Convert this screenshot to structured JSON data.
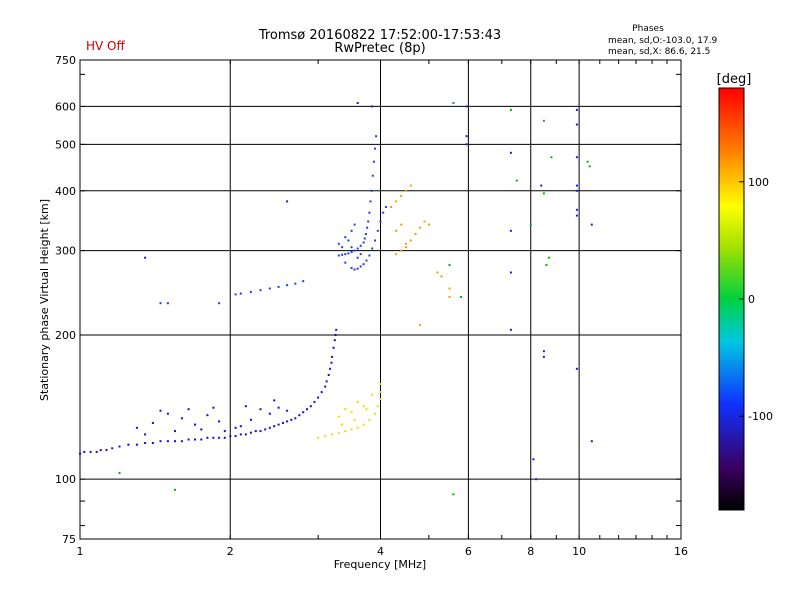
{
  "header": {
    "title": "Tromsø 20160822 17:52:00-17:53:43",
    "subtitle": "RwPretec (8p)",
    "hv_status": "HV Off",
    "hv_color": "#cc0000",
    "phases_title": "Phases",
    "phases_line1": "mean, sd,O:-103.0, 17.9",
    "phases_line2": "mean, sd,X:  86.6, 21.5"
  },
  "chart_data": {
    "type": "scatter",
    "xlabel": "Frequency [MHz]",
    "ylabel": "Stationary phase Virtual Height [km]",
    "xscale": "log",
    "yscale": "log",
    "xlim": [
      1,
      16
    ],
    "ylim": [
      75,
      750
    ],
    "xticks": [
      1,
      2,
      4,
      6,
      8,
      10,
      16
    ],
    "xtick_labels": [
      "1",
      "2",
      "4",
      "6",
      "8",
      "10",
      "16"
    ],
    "yticks": [
      75,
      100,
      200,
      300,
      400,
      500,
      600,
      750
    ],
    "ytick_labels": [
      "75",
      "100",
      "200",
      "300",
      "400",
      "500",
      "600",
      "750"
    ],
    "grid": true,
    "colorbar": {
      "label": "[deg]",
      "range": [
        -180,
        180
      ],
      "ticks": [
        100,
        0,
        -100
      ],
      "tick_labels": [
        "100",
        "0",
        "-100"
      ]
    },
    "series": [
      {
        "group": "O-trace E/F1 region",
        "color": "#2a00d8",
        "points": [
          [
            1.0,
            113
          ],
          [
            1.02,
            114
          ],
          [
            1.05,
            114
          ],
          [
            1.08,
            114
          ],
          [
            1.1,
            115
          ],
          [
            1.13,
            115
          ],
          [
            1.16,
            116
          ],
          [
            1.2,
            117
          ],
          [
            1.25,
            118
          ],
          [
            1.3,
            118
          ],
          [
            1.35,
            119
          ],
          [
            1.4,
            119
          ],
          [
            1.45,
            120
          ],
          [
            1.5,
            120
          ],
          [
            1.55,
            120
          ],
          [
            1.6,
            120
          ],
          [
            1.65,
            121
          ],
          [
            1.7,
            121
          ],
          [
            1.75,
            121
          ],
          [
            1.8,
            122
          ],
          [
            1.85,
            122
          ],
          [
            1.9,
            122
          ],
          [
            1.95,
            122
          ],
          [
            2.0,
            123
          ],
          [
            2.05,
            123
          ],
          [
            2.1,
            124
          ],
          [
            2.15,
            124
          ],
          [
            2.2,
            125
          ],
          [
            2.25,
            126
          ],
          [
            2.3,
            126
          ],
          [
            2.35,
            127
          ],
          [
            2.4,
            128
          ],
          [
            2.45,
            129
          ],
          [
            2.5,
            130
          ],
          [
            2.55,
            131
          ],
          [
            2.6,
            132
          ],
          [
            2.65,
            133
          ],
          [
            2.7,
            134
          ],
          [
            2.75,
            136
          ],
          [
            2.8,
            138
          ],
          [
            2.85,
            140
          ],
          [
            2.9,
            142
          ],
          [
            2.95,
            145
          ],
          [
            3.0,
            148
          ],
          [
            3.05,
            152
          ],
          [
            3.1,
            156
          ],
          [
            3.12,
            160
          ],
          [
            3.15,
            165
          ],
          [
            3.17,
            170
          ],
          [
            3.19,
            175
          ],
          [
            3.2,
            180
          ],
          [
            3.22,
            188
          ],
          [
            3.24,
            195
          ],
          [
            3.25,
            200
          ],
          [
            3.26,
            205
          ],
          [
            1.3,
            128
          ],
          [
            1.4,
            131
          ],
          [
            1.5,
            137
          ],
          [
            1.6,
            134
          ],
          [
            1.7,
            130
          ],
          [
            1.8,
            136
          ],
          [
            1.9,
            132
          ],
          [
            2.1,
            129
          ],
          [
            2.2,
            133
          ],
          [
            2.3,
            140
          ],
          [
            2.4,
            137
          ],
          [
            2.5,
            141
          ],
          [
            2.6,
            139
          ],
          [
            1.35,
            124
          ],
          [
            1.55,
            126
          ],
          [
            1.75,
            127
          ],
          [
            1.95,
            126
          ],
          [
            2.05,
            128
          ],
          [
            1.45,
            139
          ],
          [
            1.65,
            140
          ],
          [
            1.85,
            141
          ],
          [
            2.15,
            142
          ],
          [
            2.45,
            146
          ]
        ]
      },
      {
        "group": "O-trace F2 region",
        "color": "#1f3cf0",
        "points": [
          [
            1.45,
            233
          ],
          [
            1.5,
            233
          ],
          [
            1.9,
            233
          ],
          [
            2.05,
            243
          ],
          [
            2.1,
            244
          ],
          [
            2.2,
            246
          ],
          [
            2.3,
            248
          ],
          [
            2.4,
            250
          ],
          [
            2.5,
            252
          ],
          [
            2.6,
            254
          ],
          [
            2.7,
            256
          ],
          [
            2.8,
            259
          ],
          [
            3.3,
            293
          ],
          [
            3.35,
            294
          ],
          [
            3.4,
            295
          ],
          [
            3.45,
            296
          ],
          [
            3.5,
            298
          ],
          [
            3.55,
            300
          ],
          [
            3.6,
            303
          ],
          [
            3.65,
            307
          ],
          [
            3.7,
            312
          ],
          [
            3.72,
            318
          ],
          [
            3.74,
            325
          ],
          [
            3.76,
            335
          ],
          [
            3.78,
            345
          ],
          [
            3.8,
            360
          ],
          [
            3.82,
            380
          ],
          [
            3.84,
            400
          ],
          [
            3.86,
            430
          ],
          [
            3.88,
            460
          ],
          [
            3.9,
            490
          ],
          [
            3.92,
            520
          ],
          [
            3.5,
            276
          ],
          [
            3.55,
            274
          ],
          [
            3.6,
            275
          ],
          [
            3.65,
            278
          ],
          [
            3.7,
            281
          ],
          [
            3.75,
            286
          ],
          [
            3.8,
            293
          ],
          [
            3.85,
            303
          ],
          [
            3.9,
            315
          ],
          [
            3.95,
            330
          ],
          [
            4.0,
            345
          ],
          [
            4.05,
            360
          ],
          [
            4.1,
            370
          ],
          [
            3.3,
            310
          ],
          [
            3.4,
            320
          ],
          [
            3.5,
            330
          ],
          [
            3.45,
            315
          ],
          [
            3.55,
            340
          ],
          [
            3.35,
            305
          ],
          [
            3.6,
            290
          ],
          [
            3.4,
            283
          ],
          [
            3.5,
            305
          ],
          [
            3.65,
            295
          ]
        ]
      },
      {
        "group": "X-trace E/F1 region",
        "color": "#e8e000",
        "points": [
          [
            3.0,
            122
          ],
          [
            3.1,
            123
          ],
          [
            3.2,
            124
          ],
          [
            3.3,
            125
          ],
          [
            3.4,
            126
          ],
          [
            3.5,
            127
          ],
          [
            3.6,
            128
          ],
          [
            3.7,
            130
          ],
          [
            3.8,
            133
          ],
          [
            3.9,
            137
          ],
          [
            3.95,
            142
          ],
          [
            4.0,
            147
          ],
          [
            4.0,
            152
          ],
          [
            4.0,
            158
          ],
          [
            3.3,
            135
          ],
          [
            3.4,
            140
          ],
          [
            3.5,
            138
          ],
          [
            3.6,
            145
          ],
          [
            3.7,
            142
          ],
          [
            3.35,
            130
          ],
          [
            3.55,
            133
          ],
          [
            3.75,
            140
          ],
          [
            3.85,
            150
          ]
        ]
      },
      {
        "group": "X-trace F2 region",
        "color": "#f0a000",
        "points": [
          [
            4.3,
            295
          ],
          [
            4.4,
            300
          ],
          [
            4.5,
            305
          ],
          [
            4.6,
            315
          ],
          [
            4.7,
            325
          ],
          [
            4.8,
            335
          ],
          [
            4.5,
            400
          ],
          [
            4.6,
            410
          ],
          [
            4.4,
            390
          ],
          [
            4.3,
            380
          ],
          [
            4.2,
            370
          ],
          [
            4.9,
            345
          ],
          [
            5.0,
            340
          ],
          [
            5.2,
            270
          ],
          [
            5.3,
            265
          ],
          [
            5.5,
            250
          ],
          [
            5.5,
            240
          ],
          [
            4.8,
            210
          ],
          [
            4.3,
            330
          ],
          [
            4.4,
            340
          ],
          [
            4.5,
            310
          ]
        ]
      },
      {
        "group": "Scattered echoes",
        "color": "#1a1ae0",
        "points": [
          [
            5.95,
            600
          ],
          [
            5.95,
            520
          ],
          [
            5.95,
            500
          ],
          [
            7.3,
            480
          ],
          [
            7.3,
            330
          ],
          [
            7.3,
            270
          ],
          [
            7.3,
            205
          ],
          [
            8.4,
            410
          ],
          [
            8.5,
            185
          ],
          [
            8.5,
            180
          ],
          [
            9.9,
            590
          ],
          [
            9.9,
            550
          ],
          [
            9.9,
            470
          ],
          [
            9.9,
            410
          ],
          [
            9.9,
            400
          ],
          [
            9.9,
            365
          ],
          [
            9.9,
            355
          ],
          [
            10.6,
            340
          ],
          [
            10.6,
            120
          ],
          [
            8.1,
            110
          ],
          [
            8.2,
            100
          ],
          [
            9.9,
            170
          ],
          [
            1.35,
            290
          ],
          [
            2.6,
            380
          ],
          [
            3.6,
            610
          ],
          [
            3.85,
            600
          ]
        ]
      },
      {
        "group": "Scattered echoes (other phase)",
        "color": "#00b800",
        "points": [
          [
            7.3,
            590
          ],
          [
            8.8,
            470
          ],
          [
            5.6,
            610
          ],
          [
            7.5,
            420
          ],
          [
            8.5,
            560
          ],
          [
            8.5,
            395
          ],
          [
            8.7,
            290
          ],
          [
            1.2,
            103
          ],
          [
            1.55,
            95
          ],
          [
            5.6,
            93
          ],
          [
            8.0,
            340
          ],
          [
            10.4,
            460
          ],
          [
            10.5,
            450
          ],
          [
            8.6,
            280
          ],
          [
            5.5,
            280
          ],
          [
            5.8,
            240
          ]
        ]
      }
    ]
  }
}
